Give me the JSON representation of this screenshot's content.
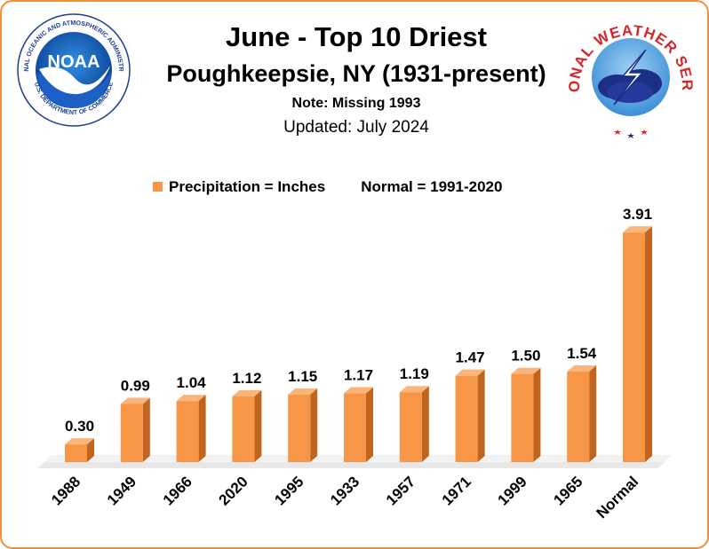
{
  "header": {
    "title": "June - Top 10 Driest",
    "subtitle": "Poughkeepsie, NY (1931-present)",
    "note": "Note: Missing 1993",
    "updated": "Updated:  July 2024"
  },
  "logos": {
    "noaa": {
      "text": "NOAA",
      "ring_text": "NATIONAL OCEANIC AND ATMOSPHERIC ADMINISTRATION",
      "bottom_text": "U.S. DEPARTMENT OF COMMERCE"
    },
    "nws": {
      "text": "NATIONAL WEATHER SERVICE"
    }
  },
  "legend": {
    "series": "Precipitation = Inches",
    "normal": "Normal = 1991-2020"
  },
  "colors": {
    "border": "#f0913a",
    "bar_front": "#f79646",
    "bar_side": "#c0641e",
    "bar_top": "#fbb57a",
    "floor": "#e8e8e8"
  },
  "chart_data": {
    "type": "bar",
    "categories": [
      "1988",
      "1949",
      "1966",
      "2020",
      "1995",
      "1933",
      "1957",
      "1971",
      "1999",
      "1965",
      "Normal"
    ],
    "series": [
      {
        "name": "Precipitation = Inches",
        "values": [
          0.3,
          0.99,
          1.04,
          1.12,
          1.15,
          1.17,
          1.19,
          1.47,
          1.5,
          1.54,
          3.91
        ],
        "labels": [
          "0.30",
          "0.99",
          "1.04",
          "1.12",
          "1.15",
          "1.17",
          "1.19",
          "1.47",
          "1.50",
          "1.54",
          "3.91"
        ]
      }
    ],
    "ylim": [
      0,
      4.0
    ],
    "grid": false,
    "legend_position": "top"
  }
}
